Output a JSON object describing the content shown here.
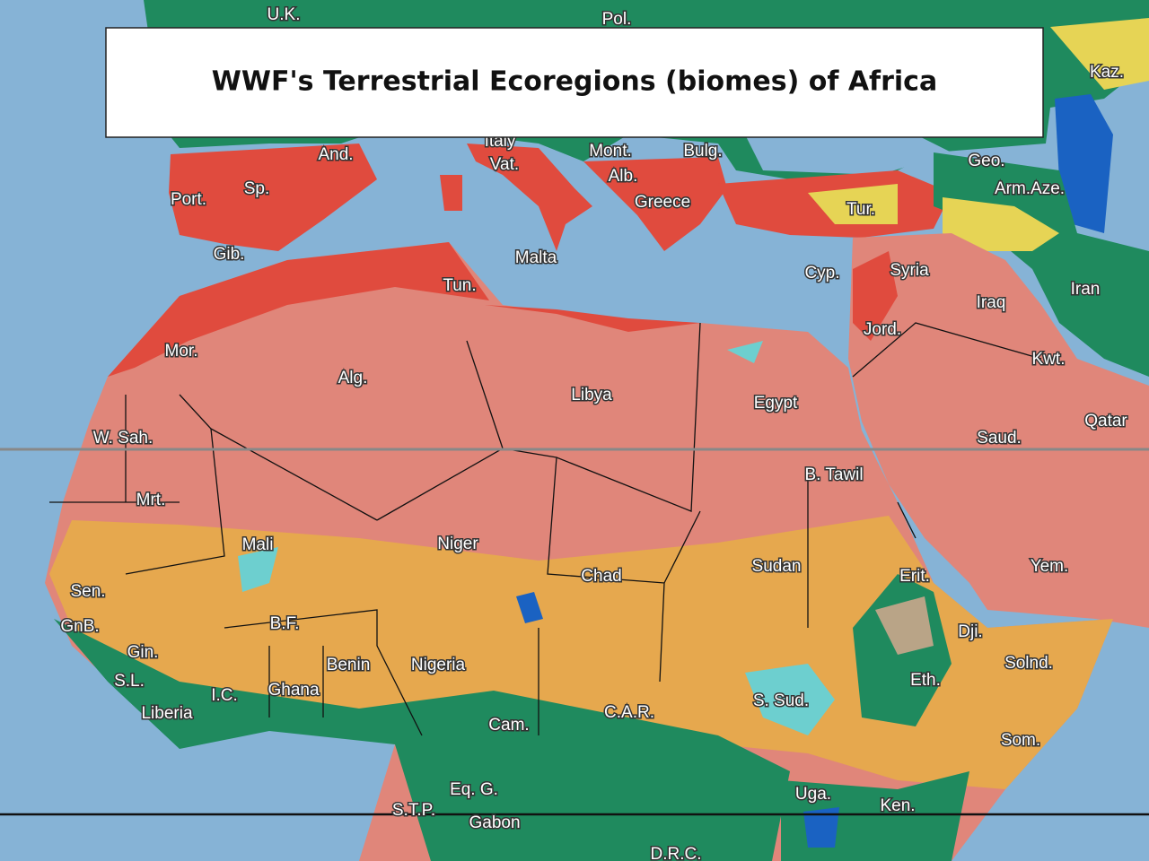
{
  "title": "WWF's Terrestrial Ecoregions (biomes) of Africa",
  "labels": [
    "U.K.",
    "Pol.",
    "Kaz.",
    "Italy",
    "Vat.",
    "And.",
    "Mont.",
    "Bulg.",
    "Geo.",
    "Alb.",
    "Sp.",
    "Port.",
    "Greece",
    "Tur.",
    "Arm.Aze.",
    "Gib.",
    "Malta",
    "Cyp.",
    "Syria",
    "Tun.",
    "Iran",
    "Iraq",
    "Jord.",
    "Mor.",
    "Kwt.",
    "Alg.",
    "Libya",
    "Egypt",
    "Qatar",
    "W. Sah.",
    "Saud.",
    "B. Tawil",
    "Mrt.",
    "Mali",
    "Niger",
    "Sudan",
    "Yem.",
    "Chad",
    "Erit.",
    "Sen.",
    "GnB.",
    "B.F.",
    "Dji.",
    "Gin.",
    "Solnd.",
    "Benin",
    "Nigeria",
    "Eth.",
    "S.L.",
    "Ghana",
    "I.C.",
    "S. Sud.",
    "C.A.R.",
    "Liberia",
    "Cam.",
    "Som.",
    "Eq. G.",
    "Uga.",
    "Ken.",
    "S.T.P.",
    "Gabon",
    "D.R.C."
  ]
}
